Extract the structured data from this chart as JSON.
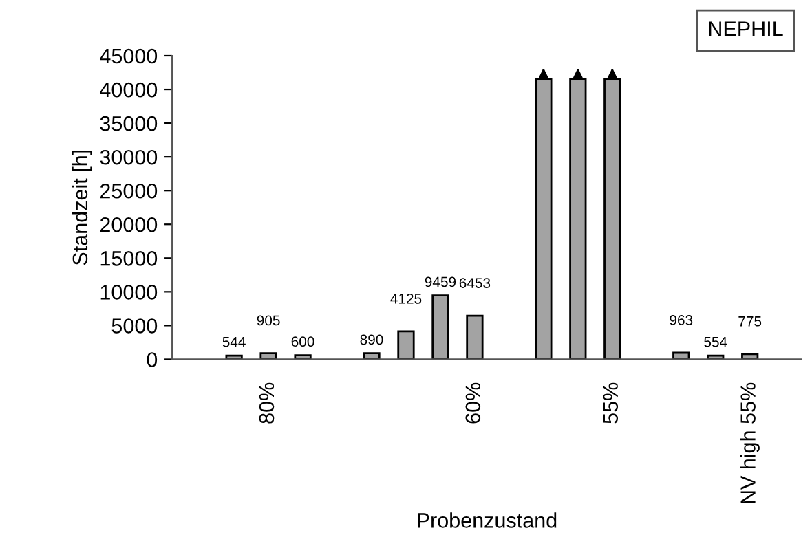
{
  "chart_data": {
    "type": "bar",
    "xlabel": "Probenzustand",
    "ylabel": "Standzeit [h]",
    "categories": [
      null,
      "80%",
      null,
      null,
      null,
      null,
      null,
      "60%",
      null,
      null,
      null,
      "55%",
      null,
      null,
      null,
      "NV high 55%"
    ],
    "values": [
      544,
      905,
      600,
      null,
      890,
      4125,
      9459,
      6453,
      null,
      41500,
      41500,
      41500,
      null,
      963,
      554,
      775
    ],
    "value_labels": [
      "544",
      "905",
      "600",
      null,
      "890",
      "4125",
      "9459",
      "6453",
      null,
      null,
      null,
      null,
      null,
      "963",
      "554",
      "775"
    ],
    "color": "#a3a3a3",
    "ylim": [
      0,
      45000
    ],
    "yticks": [
      0,
      5000,
      10000,
      15000,
      20000,
      25000,
      30000,
      35000,
      40000,
      45000
    ],
    "grid": false,
    "legend": false,
    "annotations": [
      "NEPHIL"
    ]
  }
}
